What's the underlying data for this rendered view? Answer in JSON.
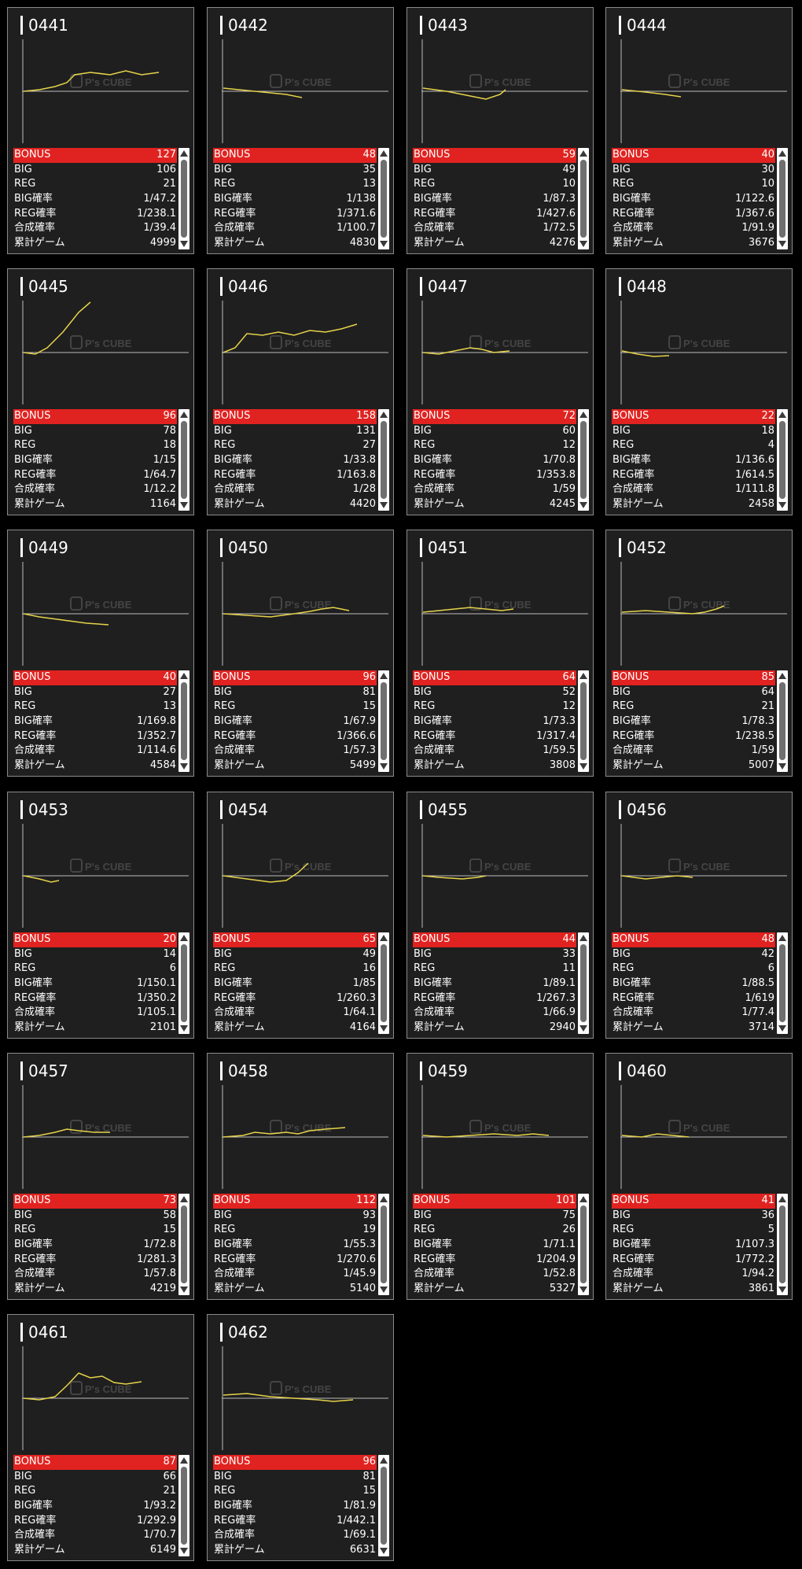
{
  "colors": {
    "bonus_bar": "#e02320",
    "line": "#e6d34a",
    "background": "#1f1f1f"
  },
  "watermark": {
    "logo": "P's CUBE"
  },
  "row_labels": [
    "BONUS",
    "BIG",
    "REG",
    "BIG確率",
    "REG確率",
    "合成確率",
    "累計ゲーム"
  ],
  "machines": [
    {
      "id": "0441",
      "bonus": "127",
      "big": "106",
      "reg": "21",
      "big_rate": "1/47.2",
      "reg_rate": "1/238.1",
      "combined_rate": "1/39.4",
      "total_games": "4999"
    },
    {
      "id": "0442",
      "bonus": "48",
      "big": "35",
      "reg": "13",
      "big_rate": "1/138",
      "reg_rate": "1/371.6",
      "combined_rate": "1/100.7",
      "total_games": "4830"
    },
    {
      "id": "0443",
      "bonus": "59",
      "big": "49",
      "reg": "10",
      "big_rate": "1/87.3",
      "reg_rate": "1/427.6",
      "combined_rate": "1/72.5",
      "total_games": "4276"
    },
    {
      "id": "0444",
      "bonus": "40",
      "big": "30",
      "reg": "10",
      "big_rate": "1/122.6",
      "reg_rate": "1/367.6",
      "combined_rate": "1/91.9",
      "total_games": "3676"
    },
    {
      "id": "0445",
      "bonus": "96",
      "big": "78",
      "reg": "18",
      "big_rate": "1/15",
      "reg_rate": "1/64.7",
      "combined_rate": "1/12.2",
      "total_games": "1164"
    },
    {
      "id": "0446",
      "bonus": "158",
      "big": "131",
      "reg": "27",
      "big_rate": "1/33.8",
      "reg_rate": "1/163.8",
      "combined_rate": "1/28",
      "total_games": "4420"
    },
    {
      "id": "0447",
      "bonus": "72",
      "big": "60",
      "reg": "12",
      "big_rate": "1/70.8",
      "reg_rate": "1/353.8",
      "combined_rate": "1/59",
      "total_games": "4245"
    },
    {
      "id": "0448",
      "bonus": "22",
      "big": "18",
      "reg": "4",
      "big_rate": "1/136.6",
      "reg_rate": "1/614.5",
      "combined_rate": "1/111.8",
      "total_games": "2458"
    },
    {
      "id": "0449",
      "bonus": "40",
      "big": "27",
      "reg": "13",
      "big_rate": "1/169.8",
      "reg_rate": "1/352.7",
      "combined_rate": "1/114.6",
      "total_games": "4584"
    },
    {
      "id": "0450",
      "bonus": "96",
      "big": "81",
      "reg": "15",
      "big_rate": "1/67.9",
      "reg_rate": "1/366.6",
      "combined_rate": "1/57.3",
      "total_games": "5499"
    },
    {
      "id": "0451",
      "bonus": "64",
      "big": "52",
      "reg": "12",
      "big_rate": "1/73.3",
      "reg_rate": "1/317.4",
      "combined_rate": "1/59.5",
      "total_games": "3808"
    },
    {
      "id": "0452",
      "bonus": "85",
      "big": "64",
      "reg": "21",
      "big_rate": "1/78.3",
      "reg_rate": "1/238.5",
      "combined_rate": "1/59",
      "total_games": "5007"
    },
    {
      "id": "0453",
      "bonus": "20",
      "big": "14",
      "reg": "6",
      "big_rate": "1/150.1",
      "reg_rate": "1/350.2",
      "combined_rate": "1/105.1",
      "total_games": "2101"
    },
    {
      "id": "0454",
      "bonus": "65",
      "big": "49",
      "reg": "16",
      "big_rate": "1/85",
      "reg_rate": "1/260.3",
      "combined_rate": "1/64.1",
      "total_games": "4164"
    },
    {
      "id": "0455",
      "bonus": "44",
      "big": "33",
      "reg": "11",
      "big_rate": "1/89.1",
      "reg_rate": "1/267.3",
      "combined_rate": "1/66.9",
      "total_games": "2940"
    },
    {
      "id": "0456",
      "bonus": "48",
      "big": "42",
      "reg": "6",
      "big_rate": "1/88.5",
      "reg_rate": "1/619",
      "combined_rate": "1/77.4",
      "total_games": "3714"
    },
    {
      "id": "0457",
      "bonus": "73",
      "big": "58",
      "reg": "15",
      "big_rate": "1/72.8",
      "reg_rate": "1/281.3",
      "combined_rate": "1/57.8",
      "total_games": "4219"
    },
    {
      "id": "0458",
      "bonus": "112",
      "big": "93",
      "reg": "19",
      "big_rate": "1/55.3",
      "reg_rate": "1/270.6",
      "combined_rate": "1/45.9",
      "total_games": "5140"
    },
    {
      "id": "0459",
      "bonus": "101",
      "big": "75",
      "reg": "26",
      "big_rate": "1/71.1",
      "reg_rate": "1/204.9",
      "combined_rate": "1/52.8",
      "total_games": "5327"
    },
    {
      "id": "0460",
      "bonus": "41",
      "big": "36",
      "reg": "5",
      "big_rate": "1/107.3",
      "reg_rate": "1/772.2",
      "combined_rate": "1/94.2",
      "total_games": "3861"
    },
    {
      "id": "0461",
      "bonus": "87",
      "big": "66",
      "reg": "21",
      "big_rate": "1/93.2",
      "reg_rate": "1/292.9",
      "combined_rate": "1/70.7",
      "total_games": "6149"
    },
    {
      "id": "0462",
      "bonus": "96",
      "big": "81",
      "reg": "15",
      "big_rate": "1/81.9",
      "reg_rate": "1/442.1",
      "combined_rate": "1/69.1",
      "total_games": "6631"
    }
  ]
}
